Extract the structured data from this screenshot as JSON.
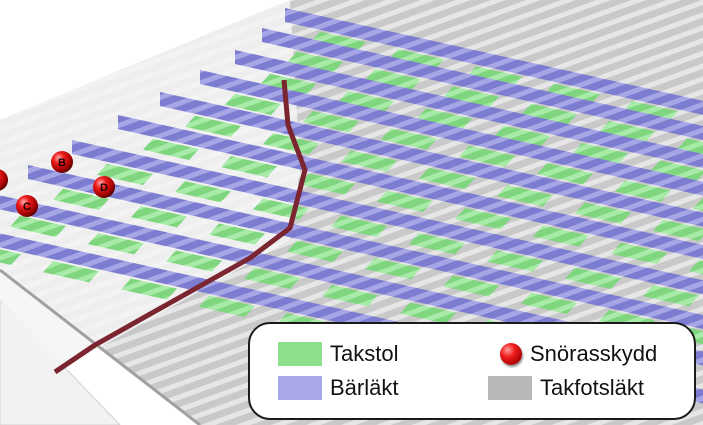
{
  "markers": [
    {
      "label": "B"
    },
    {
      "label": "C"
    },
    {
      "label": "D"
    },
    {
      "label": ""
    }
  ],
  "legend": {
    "items": [
      {
        "label": "Takstol",
        "color": "#8ee08e"
      },
      {
        "label": "Snörasskydd",
        "color": "#e01010",
        "icon": "red-ball-icon"
      },
      {
        "label": "Bärläkt",
        "color": "#a8a8e8"
      },
      {
        "label": "Takfotsläkt",
        "color": "#b8b8b8"
      }
    ]
  },
  "colors": {
    "takstol": "#8ee08e",
    "barlakt": "#8c8cd8",
    "takfotslakt": "#b8b8b8",
    "ridge_line": "#7a2530",
    "roof_sheet": "#d9d9d9"
  }
}
